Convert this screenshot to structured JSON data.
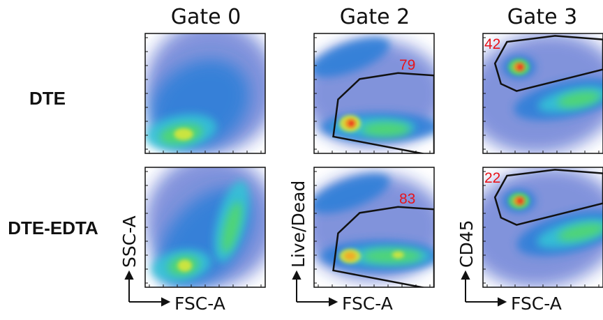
{
  "chart_data": {
    "type": "scatter",
    "columns": [
      "Gate 0",
      "Gate 2",
      "Gate 3"
    ],
    "rows": [
      "DTE",
      "DTE-EDTA"
    ],
    "panels": [
      {
        "row": "DTE",
        "column": "Gate 0",
        "x_label": "",
        "y_label": "",
        "gate_percent": null
      },
      {
        "row": "DTE",
        "column": "Gate 2",
        "x_label": "",
        "y_label": "",
        "gate_percent": "79"
      },
      {
        "row": "DTE",
        "column": "Gate 3",
        "x_label": "",
        "y_label": "",
        "gate_percent": "42"
      },
      {
        "row": "DTE-EDTA",
        "column": "Gate 0",
        "x_label": "FSC-A",
        "y_label": "SSC-A",
        "gate_percent": null
      },
      {
        "row": "DTE-EDTA",
        "column": "Gate 2",
        "x_label": "FSC-A",
        "y_label": "Live/Dead",
        "gate_percent": "83"
      },
      {
        "row": "DTE-EDTA",
        "column": "Gate 3",
        "x_label": "FSC-A",
        "y_label": "CD45",
        "gate_percent": "22"
      }
    ],
    "colormap": [
      "#1f3bbf",
      "#2f7fd8",
      "#35c3d6",
      "#52d86a",
      "#d8e63a",
      "#f5a623",
      "#e8141a"
    ],
    "gate_color": "#111111",
    "percent_color": "#e8141a"
  }
}
